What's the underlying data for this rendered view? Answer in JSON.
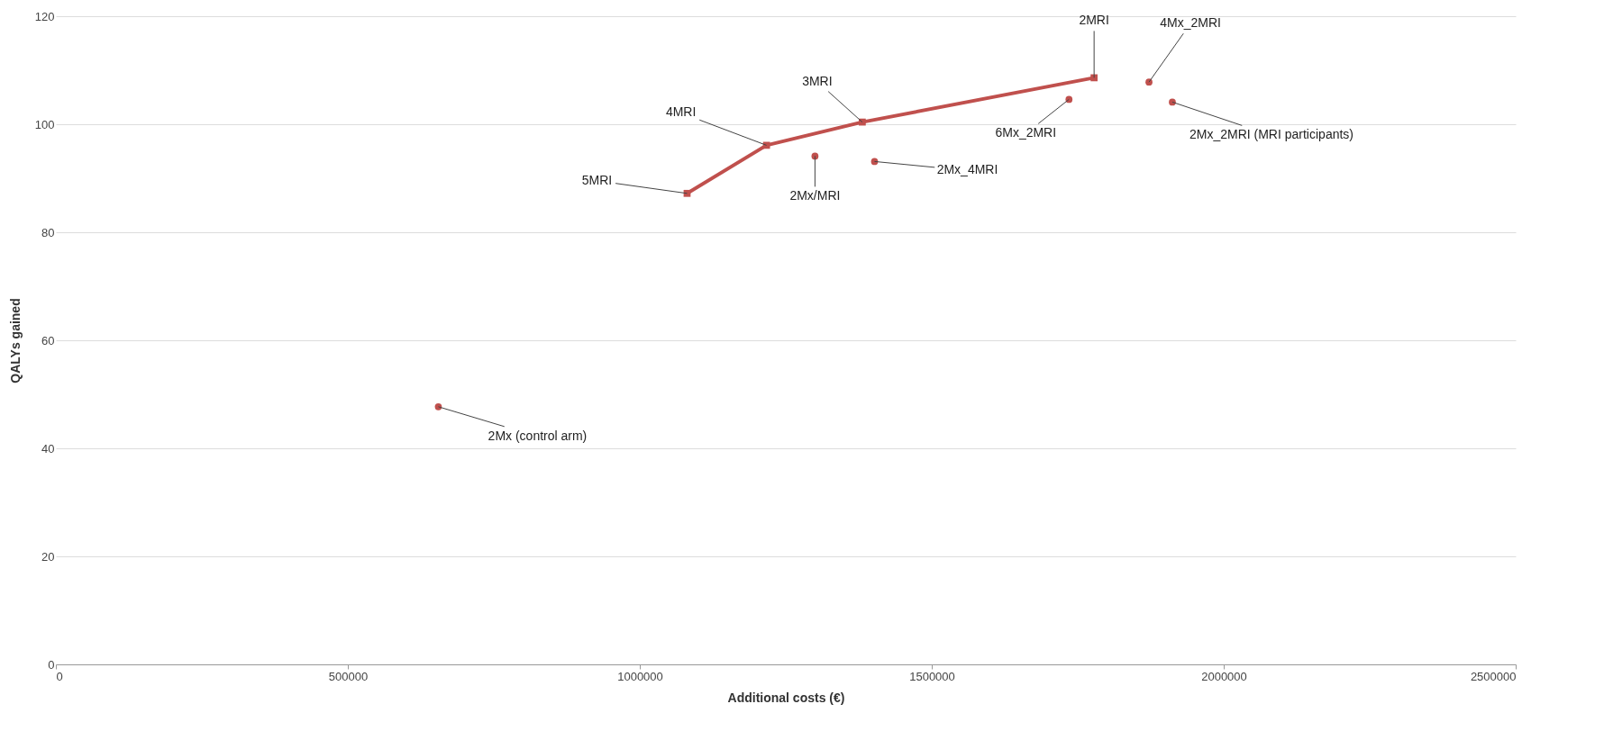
{
  "chart_data": {
    "type": "scatter",
    "xlabel": "Additional costs (€)",
    "ylabel": "QALYs gained",
    "xlim": [
      0,
      2500000
    ],
    "xticks": [
      0,
      500000,
      1000000,
      1500000,
      2000000,
      2500000
    ],
    "ylim": [
      0,
      120
    ],
    "yticks": [
      0,
      20,
      40,
      60,
      80,
      100,
      120
    ],
    "grid": "y",
    "series": [
      {
        "type": "line",
        "color": "#c0504d",
        "marker": "square",
        "x": [
          1081000,
          1217000,
          1381000,
          1778000
        ],
        "values": [
          87.2,
          96.1,
          100.4,
          108.6
        ]
      },
      {
        "color": "#c0504d",
        "marker": "circle",
        "x": [
          655000,
          1300000,
          1402000,
          1735000,
          1872000,
          1912000
        ],
        "values": [
          47.7,
          94.1,
          93.1,
          104.6,
          107.8,
          104.1
        ]
      }
    ],
    "annotations": [
      {
        "text": "2Mx (control arm)",
        "x": 655000,
        "y": 47.7
      },
      {
        "text": "5MRI",
        "x": 1081000,
        "y": 87.2
      },
      {
        "text": "4MRI",
        "x": 1217000,
        "y": 96.1
      },
      {
        "text": "3MRI",
        "x": 1381000,
        "y": 100.4
      },
      {
        "text": "2MRI",
        "x": 1778000,
        "y": 108.6
      },
      {
        "text": "4Mx_2MRI",
        "x": 1872000,
        "y": 107.8
      },
      {
        "text": "6Mx_2MRI",
        "x": 1735000,
        "y": 104.6
      },
      {
        "text": "2Mx_2MRI (MRI participants)",
        "x": 1912000,
        "y": 104.1
      },
      {
        "text": "2Mx/MRI",
        "x": 1300000,
        "y": 94.1
      },
      {
        "text": "2Mx_4MRI",
        "x": 1402000,
        "y": 93.1
      }
    ]
  }
}
